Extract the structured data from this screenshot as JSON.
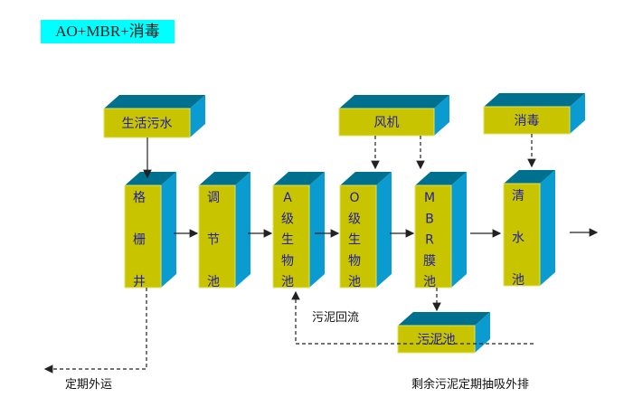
{
  "title": "AO+MBR+消毒",
  "nodes": {
    "sewage": "生活污水",
    "grille": [
      "格",
      "栅",
      "井"
    ],
    "regulating": [
      "调",
      "节",
      "池"
    ],
    "a_bio": [
      "A",
      "级",
      "生",
      "物",
      "池"
    ],
    "o_bio": [
      "O",
      "级",
      "生",
      "物",
      "池"
    ],
    "mbr": [
      "M",
      "B",
      "R",
      "膜",
      "池"
    ],
    "clear": [
      "清",
      "水",
      "池"
    ],
    "blower": "风机",
    "disinfect": "消毒",
    "sludge_tank": "污泥池"
  },
  "labels": {
    "sludge_return": "污泥回流",
    "periodic_removal": "定期外运",
    "excess_sludge": "剩余污泥定期抽吸外排"
  },
  "colors": {
    "front": "#c8c400",
    "top": "#00708f",
    "side": "#0a9bd0",
    "title_bg": "#00ffff"
  }
}
